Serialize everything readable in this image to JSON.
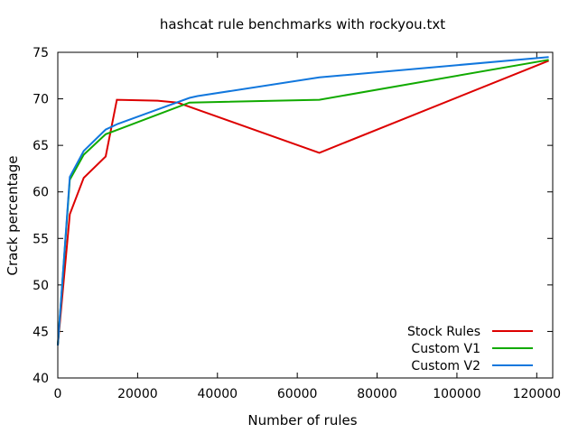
{
  "chart_data": {
    "type": "line",
    "title": "hashcat rule benchmarks with rockyou.txt",
    "xlabel": "Number of rules",
    "ylabel": "Crack percentage",
    "xlim": [
      0,
      124000
    ],
    "ylim": [
      40,
      75
    ],
    "xticks": [
      0,
      20000,
      40000,
      60000,
      80000,
      100000,
      120000
    ],
    "xtick_labels": [
      "0",
      "20000",
      "40000",
      "60000",
      "80000",
      "100000",
      "120000"
    ],
    "yticks": [
      40,
      45,
      50,
      55,
      60,
      65,
      70,
      75
    ],
    "ytick_labels": [
      "40",
      "45",
      "50",
      "55",
      "60",
      "65",
      "70",
      "75"
    ],
    "grid": false,
    "legend_position": "bottom-right",
    "series": [
      {
        "name": "Stock Rules",
        "color": "#dd0000",
        "x": [
          0,
          3000,
          6500,
          12000,
          14800,
          25000,
          30000,
          65536,
          123000
        ],
        "y": [
          43.5,
          57.6,
          61.5,
          63.8,
          69.9,
          69.8,
          69.6,
          64.2,
          74.1
        ]
      },
      {
        "name": "Custom V1",
        "color": "#11aa00",
        "x": [
          0,
          3000,
          6500,
          12000,
          33000,
          65536,
          123000
        ],
        "y": [
          43.5,
          61.3,
          64.0,
          66.2,
          69.6,
          69.9,
          74.2
        ]
      },
      {
        "name": "Custom V2",
        "color": "#1177dd",
        "x": [
          0,
          3000,
          6500,
          12000,
          15000,
          33000,
          35000,
          65536,
          123000
        ],
        "y": [
          43.5,
          61.6,
          64.4,
          66.7,
          67.3,
          70.1,
          70.3,
          72.3,
          74.5
        ]
      }
    ]
  }
}
